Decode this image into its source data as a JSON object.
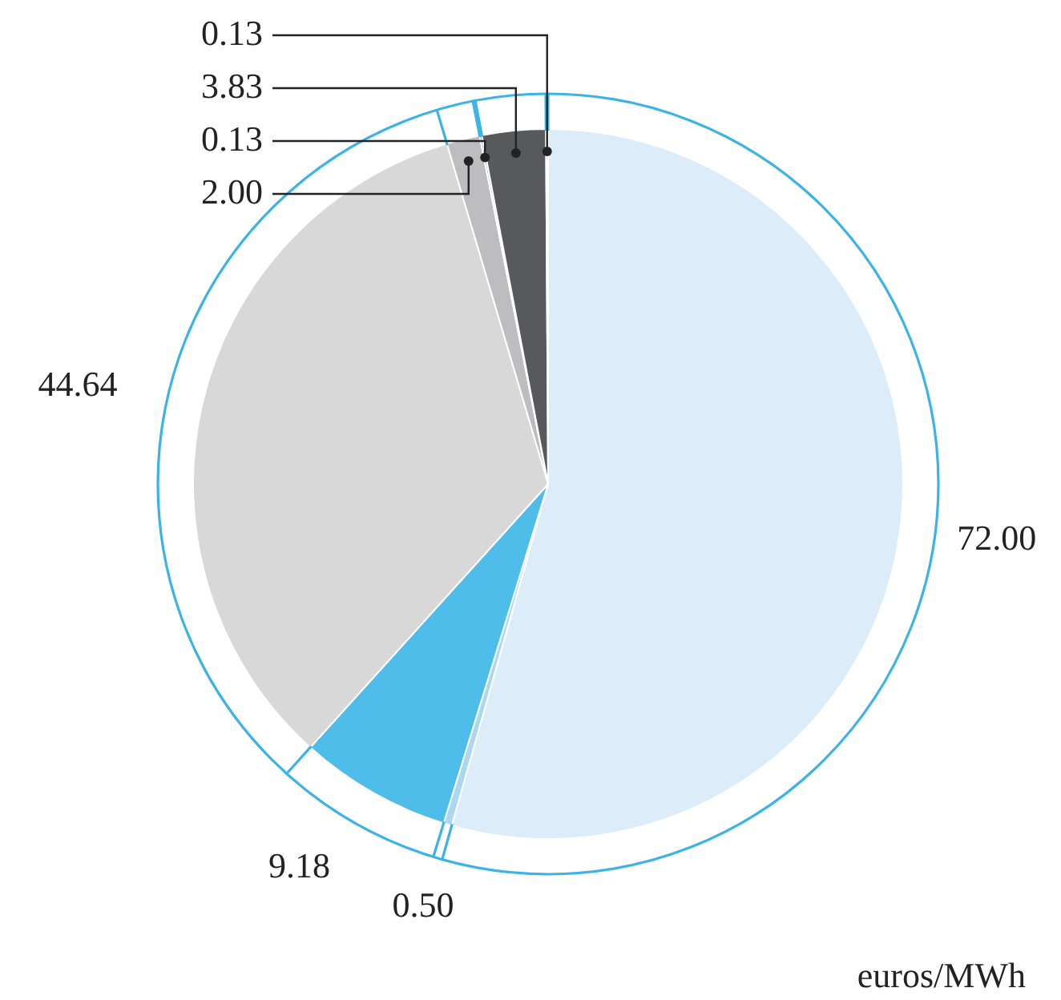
{
  "chart_data": {
    "type": "pie",
    "categories": [
      null,
      null,
      null,
      null,
      null,
      null,
      null,
      null
    ],
    "values": [
      72.0,
      0.5,
      9.18,
      44.64,
      2.0,
      0.13,
      3.83,
      0.13
    ],
    "colors": [
      "#dcedf9",
      "#acd7f1",
      "#4fbde9",
      "#d8d8d9",
      "#bdbdbf",
      "#8c8c8e",
      "#58595b",
      "#f4f4f4"
    ],
    "value_labels": [
      "72.00",
      "0.50",
      "9.18",
      "44.64",
      "2.00",
      "0.13",
      "3.83",
      "0.13"
    ],
    "annotations": [
      "euros/MWh"
    ]
  }
}
